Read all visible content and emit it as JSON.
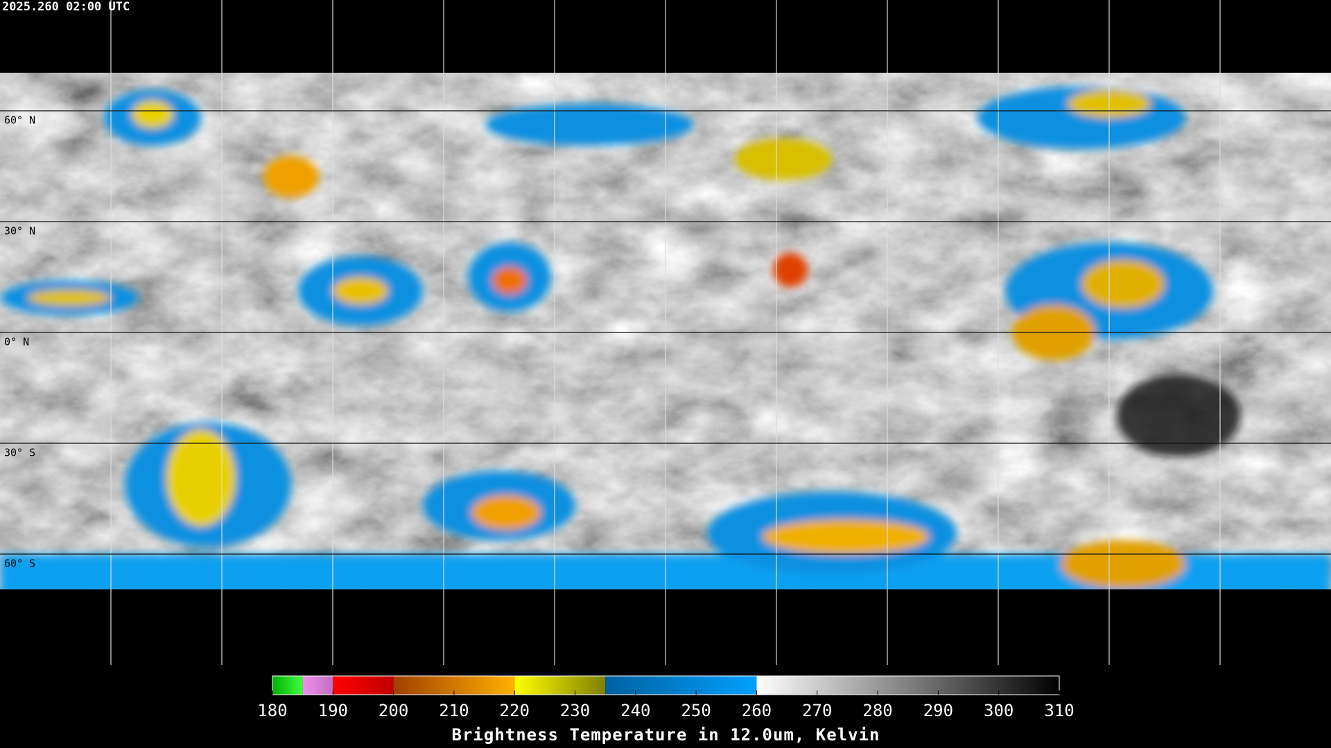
{
  "timestamp": "2025.260 02:00 UTC",
  "map": {
    "lat_range": [
      90,
      -90
    ],
    "lat_grid": [
      {
        "value": 60,
        "label": "60° N"
      },
      {
        "value": 30,
        "label": "30° N"
      },
      {
        "value": 0,
        "label": "0° N"
      },
      {
        "value": -30,
        "label": "30° S"
      },
      {
        "value": -60,
        "label": "60° S"
      }
    ]
  },
  "colorbar": {
    "title": "Brightness Temperature in 12.0um, Kelvin",
    "range": [
      180,
      310
    ],
    "ticks": [
      180,
      190,
      200,
      210,
      220,
      230,
      240,
      250,
      260,
      270,
      280,
      290,
      300,
      310
    ],
    "stops": [
      {
        "from": 180,
        "to": 185,
        "colors": [
          "#00b000",
          "#40ff40"
        ]
      },
      {
        "from": 185,
        "to": 190,
        "colors": [
          "#f090f0",
          "#c070c0"
        ]
      },
      {
        "from": 190,
        "to": 200,
        "colors": [
          "#ff0000",
          "#c00000"
        ]
      },
      {
        "from": 200,
        "to": 220,
        "colors": [
          "#a04000",
          "#ffb000"
        ]
      },
      {
        "from": 220,
        "to": 235,
        "colors": [
          "#ffff00",
          "#808000"
        ]
      },
      {
        "from": 235,
        "to": 260,
        "colors": [
          "#0060a0",
          "#00a0ff"
        ]
      },
      {
        "from": 260,
        "to": 310,
        "colors": [
          "#ffffff",
          "#000000"
        ]
      }
    ]
  }
}
